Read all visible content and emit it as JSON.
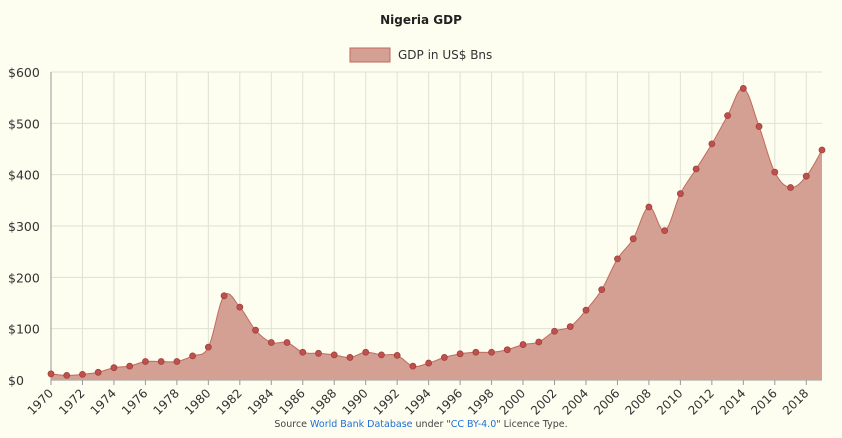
{
  "chart_data": {
    "type": "area",
    "title": "Nigeria GDP",
    "legend_position": "top-center",
    "grid": true,
    "colors": {
      "fill": "#d4a093",
      "stroke": "#c06a5e",
      "point": "#c0504d"
    },
    "y_tick_labels": [
      "$0",
      "$100",
      "$200",
      "$300",
      "$400",
      "$500",
      "$600"
    ],
    "ylim": [
      0,
      600
    ],
    "xlim": [
      1970,
      2019
    ],
    "x_tick_labels": [
      "1970",
      "1972",
      "1974",
      "1976",
      "1978",
      "1980",
      "1982",
      "1984",
      "1986",
      "1988",
      "1990",
      "1992",
      "1994",
      "1996",
      "1998",
      "2000",
      "2002",
      "2004",
      "2006",
      "2008",
      "2010",
      "2012",
      "2014",
      "2016",
      "2018"
    ],
    "series": [
      {
        "name": "GDP in US$ Bns",
        "x": [
          1970,
          1971,
          1972,
          1973,
          1974,
          1975,
          1976,
          1977,
          1978,
          1979,
          1980,
          1981,
          1982,
          1983,
          1984,
          1985,
          1986,
          1987,
          1988,
          1989,
          1990,
          1991,
          1992,
          1993,
          1994,
          1995,
          1996,
          1997,
          1998,
          1999,
          2000,
          2001,
          2002,
          2003,
          2004,
          2005,
          2006,
          2007,
          2008,
          2009,
          2010,
          2011,
          2012,
          2013,
          2014,
          2015,
          2016,
          2017,
          2018,
          2019
        ],
        "values": [
          12,
          9,
          11,
          15,
          24,
          27,
          36,
          36,
          36,
          47,
          64,
          164,
          142,
          97,
          73,
          73,
          54,
          52,
          49,
          44,
          54,
          49,
          48,
          27,
          33,
          44,
          51,
          54,
          54,
          59,
          69,
          74,
          95,
          104,
          136,
          176,
          236,
          275,
          337,
          291,
          363,
          411,
          460,
          515,
          568,
          494,
          405,
          375,
          397,
          448
        ]
      }
    ]
  },
  "source": {
    "prefix": "Source ",
    "link1": "World Bank Database",
    "middle": " under \"",
    "link2": "CC BY-4.0",
    "suffix": "\" Licence Type."
  }
}
